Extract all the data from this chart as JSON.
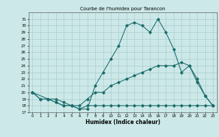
{
  "title": "Courbe de l'humidex pour Tarancon",
  "xlabel": "Humidex (Indice chaleur)",
  "background_color": "#cce8e8",
  "grid_color": "#aacccc",
  "line_color": "#1a6b6b",
  "xlim": [
    -0.5,
    23.5
  ],
  "ylim": [
    17,
    32
  ],
  "xticks": [
    0,
    1,
    2,
    3,
    4,
    5,
    6,
    7,
    8,
    9,
    10,
    11,
    12,
    13,
    14,
    15,
    16,
    17,
    18,
    19,
    20,
    21,
    22,
    23
  ],
  "yticks": [
    17,
    18,
    19,
    20,
    21,
    22,
    23,
    24,
    25,
    26,
    27,
    28,
    29,
    30,
    31
  ],
  "line1_x": [
    0,
    1,
    2,
    3,
    4,
    5,
    6,
    7,
    8,
    9,
    10,
    11,
    12,
    13,
    14,
    15,
    16,
    17,
    18,
    19,
    20,
    21,
    22,
    23
  ],
  "line1_y": [
    20,
    19,
    19,
    18.5,
    18,
    18,
    17.5,
    18,
    18,
    18,
    18,
    18,
    18,
    18,
    18,
    18,
    18,
    18,
    18,
    18,
    18,
    18,
    18,
    18
  ],
  "line2_x": [
    0,
    1,
    2,
    3,
    4,
    5,
    6,
    7,
    8,
    9,
    10,
    11,
    12,
    13,
    14,
    15,
    16,
    17,
    18,
    19,
    20,
    21,
    22,
    23
  ],
  "line2_y": [
    20,
    19,
    19,
    19,
    18.5,
    18,
    18,
    19,
    20,
    20,
    21,
    21.5,
    22,
    22.5,
    23,
    23.5,
    24,
    24,
    24,
    24.5,
    24,
    22,
    19.5,
    18
  ],
  "line3_x": [
    0,
    2,
    3,
    4,
    5,
    6,
    7,
    8,
    9,
    10,
    11,
    12,
    13,
    14,
    15,
    16,
    17,
    18,
    19,
    20,
    21,
    22,
    23
  ],
  "line3_y": [
    20,
    19,
    18.5,
    18,
    18,
    17.5,
    17.5,
    21,
    23,
    25,
    27,
    30,
    30.5,
    30,
    29,
    31,
    29,
    26.5,
    23,
    24,
    21.5,
    19.5,
    18
  ]
}
